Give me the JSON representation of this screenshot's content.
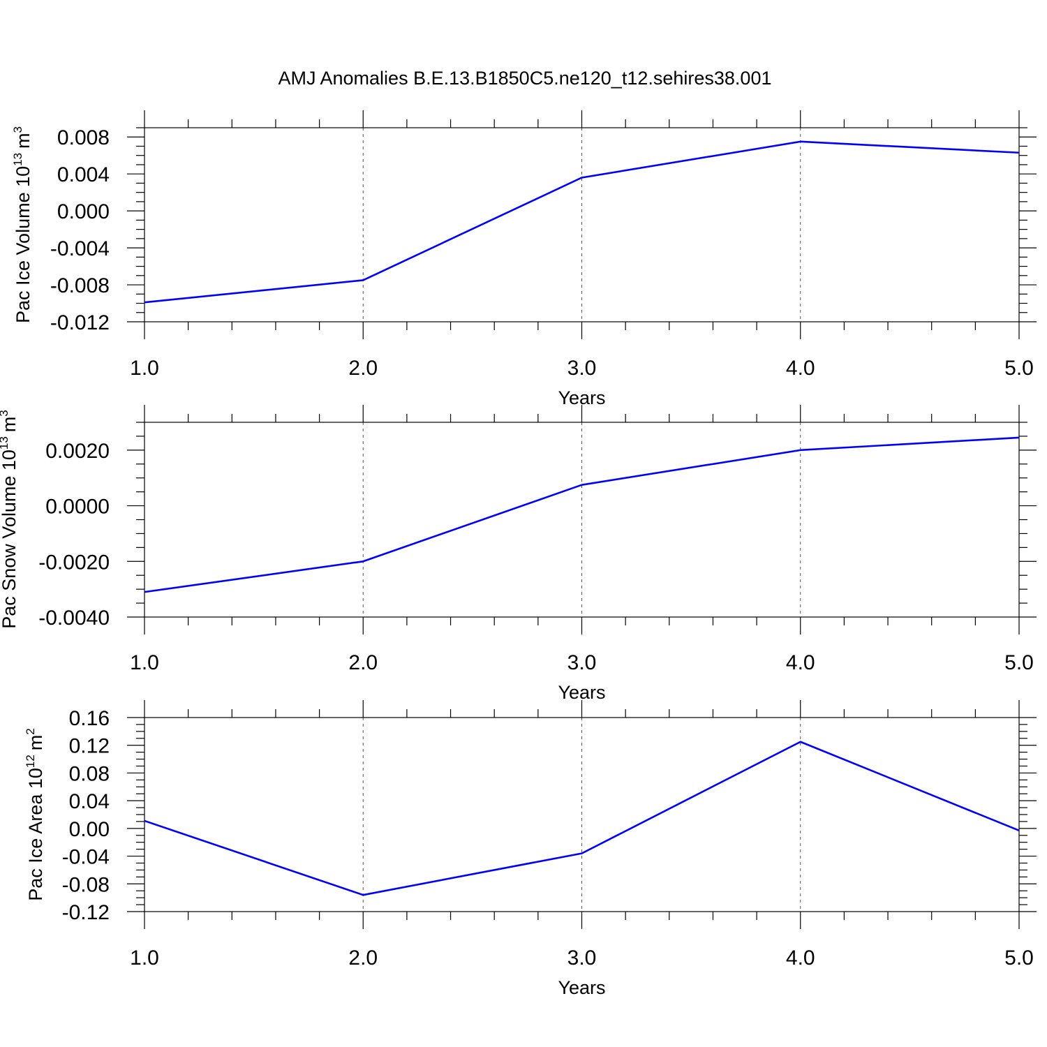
{
  "figure": {
    "title": "AMJ Anomalies B.E.13.B1850C5.ne120_t12.sehires38.001",
    "line_color": "#0000ff"
  },
  "chart_data": [
    {
      "type": "line",
      "ylabel": {
        "main": "Pac Ice Volume 10",
        "exponent": "13",
        "unit": "m",
        "unit_exponent": "3"
      },
      "xlabel": "Years",
      "x": [
        1.0,
        2.0,
        3.0,
        4.0,
        5.0
      ],
      "xlim": [
        1.0,
        5.0
      ],
      "xticks": [
        1.0,
        2.0,
        3.0,
        4.0,
        5.0
      ],
      "xtick_labels": [
        "1.0",
        "2.0",
        "3.0",
        "4.0",
        "5.0"
      ],
      "ylim": [
        -0.012,
        0.009
      ],
      "yticks": [
        -0.012,
        -0.008,
        -0.004,
        0.0,
        0.004,
        0.008
      ],
      "ytick_labels": [
        "-0.012",
        "-0.008",
        "-0.004",
        "0.000",
        "0.004",
        "0.008"
      ],
      "yminor_step": 0.001,
      "xminor_step": 0.2,
      "grid": "x-dashed",
      "series": [
        {
          "name": "Pac Ice Volume",
          "values": [
            -0.0099,
            -0.0075,
            0.0036,
            0.0075,
            0.0063
          ]
        }
      ]
    },
    {
      "type": "line",
      "ylabel": {
        "main": "Pac Snow Volume 10",
        "exponent": "13",
        "unit": "m",
        "unit_exponent": "3"
      },
      "xlabel": "Years",
      "x": [
        1.0,
        2.0,
        3.0,
        4.0,
        5.0
      ],
      "xlim": [
        1.0,
        5.0
      ],
      "xticks": [
        1.0,
        2.0,
        3.0,
        4.0,
        5.0
      ],
      "xtick_labels": [
        "1.0",
        "2.0",
        "3.0",
        "4.0",
        "5.0"
      ],
      "ylim": [
        -0.004,
        0.003
      ],
      "yticks": [
        -0.004,
        -0.002,
        0.0,
        0.002
      ],
      "ytick_labels": [
        "-0.0040",
        "-0.0020",
        "0.0000",
        "0.0020"
      ],
      "yminor_step": 0.0005,
      "xminor_step": 0.2,
      "grid": "x-dashed",
      "series": [
        {
          "name": "Pac Snow Volume",
          "values": [
            -0.0031,
            -0.002,
            0.00075,
            0.002,
            0.00245
          ]
        }
      ]
    },
    {
      "type": "line",
      "ylabel": {
        "main": "Pac Ice Area 10",
        "exponent": "12",
        "unit": "m",
        "unit_exponent": "2"
      },
      "xlabel": "Years",
      "x": [
        1.0,
        2.0,
        3.0,
        4.0,
        5.0
      ],
      "xlim": [
        1.0,
        5.0
      ],
      "xticks": [
        1.0,
        2.0,
        3.0,
        4.0,
        5.0
      ],
      "xtick_labels": [
        "1.0",
        "2.0",
        "3.0",
        "4.0",
        "5.0"
      ],
      "ylim": [
        -0.12,
        0.16
      ],
      "yticks": [
        -0.12,
        -0.08,
        -0.04,
        0.0,
        0.04,
        0.08,
        0.12,
        0.16
      ],
      "ytick_labels": [
        "-0.12",
        "-0.08",
        "-0.04",
        "0.00",
        "0.04",
        "0.08",
        "0.12",
        "0.16"
      ],
      "yminor_step": 0.01,
      "xminor_step": 0.2,
      "grid": "x-dashed",
      "series": [
        {
          "name": "Pac Ice Area",
          "values": [
            0.011,
            -0.096,
            -0.036,
            0.125,
            -0.003
          ]
        }
      ]
    }
  ]
}
